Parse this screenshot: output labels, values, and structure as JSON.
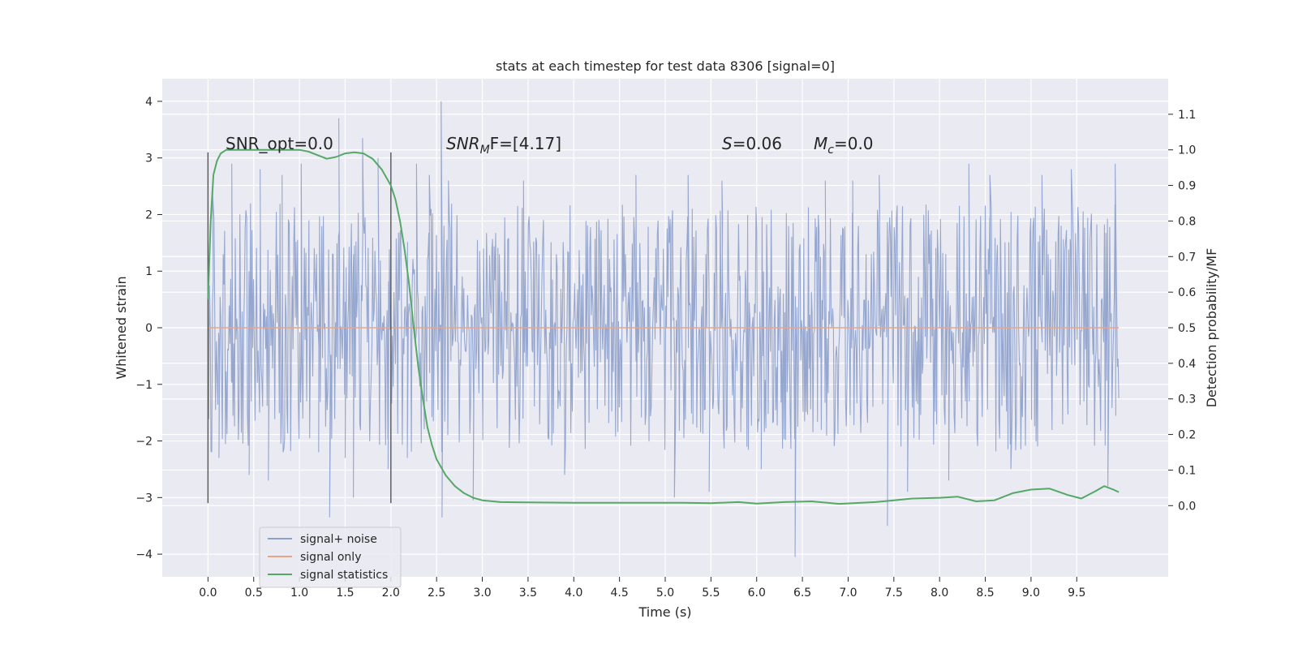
{
  "chart_data": {
    "type": "line",
    "title": "stats at each timestep for test data 8306 [signal=0]",
    "xlabel": "Time (s)",
    "ylabel": "Whitened strain",
    "y2label": "Detection probability/MF",
    "xlim": [
      -0.5,
      10.5
    ],
    "ylim": [
      -4.4,
      4.4
    ],
    "y2lim": [
      -0.2,
      1.2
    ],
    "x_ticks": [
      0.0,
      0.5,
      1.0,
      1.5,
      2.0,
      2.5,
      3.0,
      3.5,
      4.0,
      4.5,
      5.0,
      5.5,
      6.0,
      6.5,
      7.0,
      7.5,
      8.0,
      8.5,
      9.0,
      9.5
    ],
    "x_tick_labels": [
      "0.0",
      "0.5",
      "1.0",
      "1.5",
      "2.0",
      "2.5",
      "3.0",
      "3.5",
      "4.0",
      "4.5",
      "5.0",
      "5.5",
      "6.0",
      "6.5",
      "7.0",
      "7.5",
      "8.0",
      "8.5",
      "9.0",
      "9.5"
    ],
    "y_ticks": [
      -4,
      -3,
      -2,
      -1,
      0,
      1,
      2,
      3,
      4
    ],
    "y_tick_labels": [
      "−4",
      "−3",
      "−2",
      "−1",
      "0",
      "1",
      "2",
      "3",
      "4"
    ],
    "y2_ticks": [
      0.0,
      0.1,
      0.2,
      0.3,
      0.4,
      0.5,
      0.6,
      0.7,
      0.8,
      0.9,
      1.0,
      1.1
    ],
    "y2_tick_labels": [
      "0.0",
      "0.1",
      "0.2",
      "0.3",
      "0.4",
      "0.5",
      "0.6",
      "0.7",
      "0.8",
      "0.9",
      "1.0",
      "1.1"
    ],
    "grid": true,
    "legend_position": "lower-left",
    "vertical_lines": [
      0.0,
      2.0
    ],
    "vertical_line_range": [
      -3.1,
      3.1
    ],
    "annotations": {
      "snr_opt": "SNR_opt=0.0",
      "snr_mf_name": "SNR",
      "snr_mf_sub": "M",
      "snr_mf_value": "F=[4.17]",
      "s_name": "S",
      "s_value": "=0.06",
      "mc_name": "M",
      "mc_sub": "c",
      "mc_value": "=0.0"
    },
    "series": [
      {
        "name": "signal+ noise",
        "axis": "left",
        "color": "#8da0cb",
        "style": "noise",
        "x_range": [
          0.0,
          9.96
        ],
        "typical_range": [
          -1.3,
          1.3
        ],
        "spikes": [
          {
            "x": 0.05,
            "y": 2.4
          },
          {
            "x": 0.12,
            "y": -2.3
          },
          {
            "x": 0.26,
            "y": 2.9
          },
          {
            "x": 0.45,
            "y": -2.6
          },
          {
            "x": 0.57,
            "y": 2.8
          },
          {
            "x": 0.66,
            "y": -2.7
          },
          {
            "x": 0.81,
            "y": 2.7
          },
          {
            "x": 1.02,
            "y": 2.9
          },
          {
            "x": 1.21,
            "y": -2.2
          },
          {
            "x": 1.33,
            "y": -3.35
          },
          {
            "x": 1.43,
            "y": 3.7
          },
          {
            "x": 1.5,
            "y": -2.3
          },
          {
            "x": 1.59,
            "y": -3.0
          },
          {
            "x": 1.69,
            "y": 3.35
          },
          {
            "x": 1.86,
            "y": 3.0
          },
          {
            "x": 1.97,
            "y": -2.5
          },
          {
            "x": 2.18,
            "y": -2.3
          },
          {
            "x": 2.28,
            "y": 2.9
          },
          {
            "x": 2.42,
            "y": 2.7
          },
          {
            "x": 2.55,
            "y": 4.0
          },
          {
            "x": 2.56,
            "y": -3.35
          },
          {
            "x": 2.63,
            "y": 2.6
          },
          {
            "x": 2.9,
            "y": -3.05
          },
          {
            "x": 3.45,
            "y": 2.6
          },
          {
            "x": 3.9,
            "y": -2.6
          },
          {
            "x": 4.68,
            "y": 2.7
          },
          {
            "x": 5.1,
            "y": -3.0
          },
          {
            "x": 5.25,
            "y": 2.7
          },
          {
            "x": 5.48,
            "y": -2.9
          },
          {
            "x": 5.62,
            "y": 2.6
          },
          {
            "x": 6.05,
            "y": -2.5
          },
          {
            "x": 6.42,
            "y": -4.05
          },
          {
            "x": 6.75,
            "y": 2.6
          },
          {
            "x": 7.05,
            "y": 2.6
          },
          {
            "x": 7.34,
            "y": 2.7
          },
          {
            "x": 7.43,
            "y": -3.5
          },
          {
            "x": 7.65,
            "y": -2.9
          },
          {
            "x": 8.1,
            "y": -2.7
          },
          {
            "x": 8.32,
            "y": 2.9
          },
          {
            "x": 8.55,
            "y": 2.7
          },
          {
            "x": 8.78,
            "y": -2.5
          },
          {
            "x": 9.12,
            "y": 2.7
          },
          {
            "x": 9.44,
            "y": 2.8
          },
          {
            "x": 9.84,
            "y": -2.8
          },
          {
            "x": 9.92,
            "y": 2.9
          }
        ]
      },
      {
        "name": "signal only",
        "axis": "left",
        "color": "#e5a58b",
        "x": [
          0.0,
          9.96
        ],
        "y": [
          0.0,
          0.0
        ]
      },
      {
        "name": "signal statistics",
        "axis": "right",
        "color": "#55a868",
        "x": [
          0.0,
          0.03,
          0.06,
          0.1,
          0.14,
          0.2,
          0.3,
          0.45,
          0.6,
          0.8,
          1.0,
          1.1,
          1.2,
          1.3,
          1.4,
          1.5,
          1.6,
          1.7,
          1.8,
          1.9,
          2.0,
          2.05,
          2.1,
          2.15,
          2.2,
          2.25,
          2.3,
          2.35,
          2.4,
          2.45,
          2.5,
          2.6,
          2.7,
          2.8,
          2.9,
          3.0,
          3.2,
          3.5,
          4.0,
          4.5,
          4.8,
          5.0,
          5.2,
          5.5,
          5.8,
          6.0,
          6.3,
          6.6,
          6.9,
          7.3,
          7.5,
          7.7,
          8.0,
          8.2,
          8.4,
          8.6,
          8.8,
          9.0,
          9.2,
          9.4,
          9.55,
          9.7,
          9.8,
          9.9,
          9.96
        ],
        "y": [
          0.58,
          0.8,
          0.93,
          0.97,
          0.99,
          1.0,
          1.0,
          1.0,
          1.0,
          1.0,
          1.0,
          0.995,
          0.985,
          0.975,
          0.98,
          0.99,
          0.993,
          0.99,
          0.975,
          0.945,
          0.9,
          0.86,
          0.8,
          0.72,
          0.62,
          0.5,
          0.39,
          0.3,
          0.22,
          0.17,
          0.13,
          0.085,
          0.055,
          0.035,
          0.022,
          0.015,
          0.01,
          0.009,
          0.008,
          0.008,
          0.008,
          0.008,
          0.008,
          0.007,
          0.01,
          0.006,
          0.01,
          0.012,
          0.005,
          0.01,
          0.015,
          0.02,
          0.022,
          0.025,
          0.012,
          0.015,
          0.035,
          0.045,
          0.048,
          0.03,
          0.02,
          0.04,
          0.055,
          0.045,
          0.038
        ]
      }
    ]
  }
}
